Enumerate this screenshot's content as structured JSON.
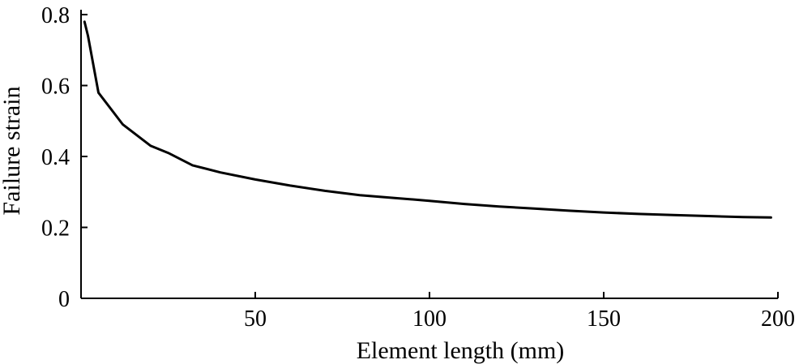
{
  "chart_data": {
    "type": "line",
    "title": "",
    "xlabel": "Element length (mm)",
    "ylabel": "Failure strain",
    "xlim": [
      0,
      200
    ],
    "ylim": [
      0,
      0.8
    ],
    "xticks": [
      50,
      100,
      150,
      200
    ],
    "xtick_labels": [
      "50",
      "100",
      "150",
      "200"
    ],
    "yticks": [
      0,
      0.2,
      0.4,
      0.6,
      0.8
    ],
    "ytick_labels": [
      "0",
      "0.2",
      "0.4",
      "0.6",
      "0.8"
    ],
    "grid": false,
    "legend": "none",
    "line_color": "#000000",
    "series": [
      {
        "x": [
          1,
          2,
          5,
          12,
          20,
          25,
          32,
          40,
          50,
          60,
          70,
          80,
          90,
          100,
          110,
          120,
          130,
          140,
          150,
          160,
          170,
          180,
          190,
          198
        ],
        "y": [
          0.78,
          0.74,
          0.58,
          0.49,
          0.43,
          0.41,
          0.375,
          0.355,
          0.335,
          0.318,
          0.303,
          0.291,
          0.283,
          0.275,
          0.266,
          0.259,
          0.253,
          0.247,
          0.242,
          0.238,
          0.235,
          0.232,
          0.229,
          0.228
        ]
      }
    ]
  }
}
